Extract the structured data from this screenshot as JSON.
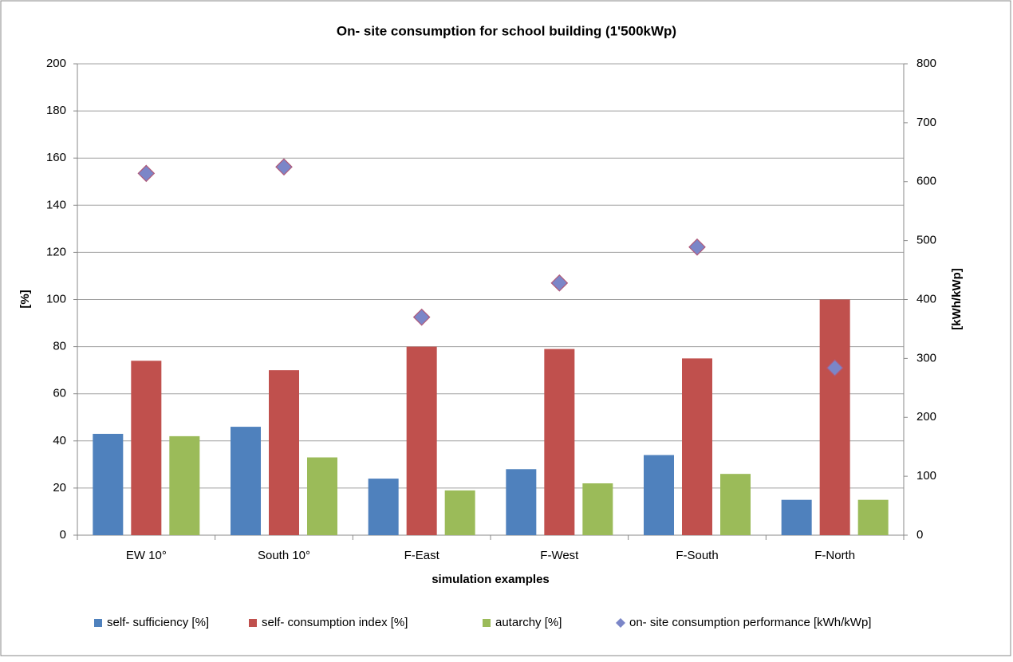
{
  "chart_data": {
    "type": "bar",
    "title": "On- site consumption for school building (1'500kWp)",
    "x_label": "simulation examples",
    "y_label": "[%]",
    "y2_label": "[kWh/kWp]",
    "categories": [
      "EW 10°",
      "South 10°",
      "F-East",
      "F-West",
      "F-South",
      "F-North"
    ],
    "series": [
      {
        "name": "self- sufficiency  [%]",
        "color": "#4f81bd",
        "values": [
          43,
          46,
          24,
          28,
          34,
          15
        ]
      },
      {
        "name": "self- consumption index [%]",
        "color": "#c0504d",
        "values": [
          74,
          70,
          80,
          79,
          75,
          100
        ]
      },
      {
        "name": "autarchy [%]",
        "color": "#9bbb59",
        "values": [
          42,
          33,
          19,
          22,
          26,
          15
        ]
      },
      {
        "name": "on- site consumption performance [kWh/kWp]",
        "color": "#7b86c8",
        "type": "scatter",
        "axis": "y2",
        "values": [
          614,
          625,
          370,
          428,
          489,
          284
        ]
      }
    ],
    "ylim": [
      0,
      200
    ],
    "yticks": [
      0,
      20,
      40,
      60,
      80,
      100,
      120,
      140,
      160,
      180,
      200
    ],
    "y2lim": [
      0,
      800
    ],
    "y2ticks": [
      0,
      100,
      200,
      300,
      400,
      500,
      600,
      700,
      800
    ],
    "grid": true,
    "legend": "bottom"
  }
}
